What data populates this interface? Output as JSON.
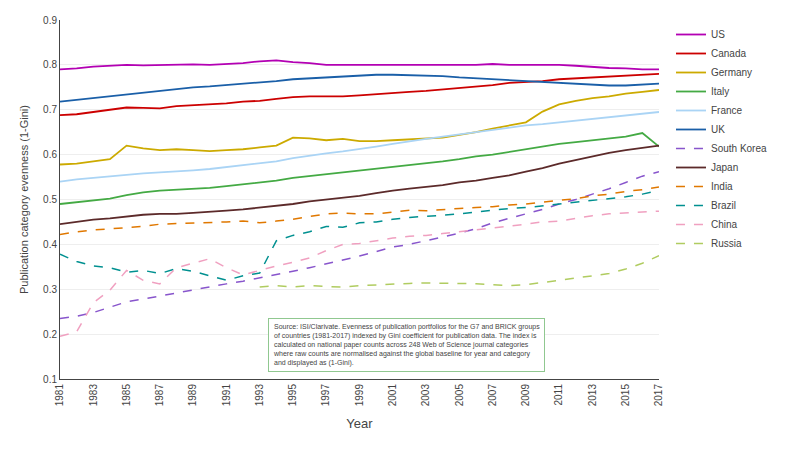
{
  "chart_data": {
    "type": "line",
    "xlabel": "Year",
    "ylabel": "Publication category evenness (1-Gini)",
    "annotation": "Source: ISI/Clarivate. Evenness of publication portfolios for the G7 and BRICK groups\nof countries (1981-2017) indexed by Gini coefficient for publication data. The index is\ncalculated on national paper counts across 248 Web of Science journal categories\nwhere raw counts are normalised against the global baseline for year and category\nand displayed as (1-Gini).",
    "x": [
      1981,
      1982,
      1983,
      1984,
      1985,
      1986,
      1987,
      1988,
      1989,
      1990,
      1991,
      1992,
      1993,
      1994,
      1995,
      1996,
      1997,
      1998,
      1999,
      2000,
      2001,
      2002,
      2003,
      2004,
      2005,
      2006,
      2007,
      2008,
      2009,
      2010,
      2011,
      2012,
      2013,
      2014,
      2015,
      2016,
      2017
    ],
    "xlim": [
      1981,
      2017
    ],
    "xticks": [
      1981,
      1983,
      1985,
      1987,
      1989,
      1991,
      1993,
      1995,
      1997,
      1999,
      2001,
      2003,
      2005,
      2007,
      2009,
      2011,
      2013,
      2015,
      2017
    ],
    "ylim": [
      0.1,
      0.9
    ],
    "yticks": [
      0.1,
      0.2,
      0.3,
      0.4,
      0.5,
      0.6,
      0.7,
      0.8,
      0.9
    ],
    "grid": "y",
    "legend": "right",
    "series": [
      {
        "name": "US",
        "color": "#b300b3",
        "line_style": "solid",
        "values": [
          0.79,
          0.792,
          0.796,
          0.798,
          0.8,
          0.799,
          0.8,
          0.8,
          0.801,
          0.8,
          0.802,
          0.804,
          0.808,
          0.81,
          0.806,
          0.804,
          0.8,
          0.8,
          0.8,
          0.8,
          0.8,
          0.8,
          0.8,
          0.8,
          0.801,
          0.8,
          0.802,
          0.8,
          0.8,
          0.8,
          0.8,
          0.798,
          0.795,
          0.793,
          0.792,
          0.79,
          0.79
        ]
      },
      {
        "name": "Canada",
        "color": "#cc0000",
        "line_style": "solid",
        "values": [
          0.688,
          0.69,
          0.695,
          0.7,
          0.705,
          0.704,
          0.703,
          0.708,
          0.71,
          0.712,
          0.714,
          0.718,
          0.72,
          0.724,
          0.728,
          0.73,
          0.73,
          0.73,
          0.732,
          0.735,
          0.738,
          0.74,
          0.742,
          0.745,
          0.748,
          0.752,
          0.755,
          0.76,
          0.762,
          0.764,
          0.768,
          0.77,
          0.772,
          0.774,
          0.776,
          0.778,
          0.78
        ]
      },
      {
        "name": "Germany",
        "color": "#ccaa00",
        "line_style": "solid",
        "values": [
          0.578,
          0.58,
          0.585,
          0.59,
          0.62,
          0.614,
          0.61,
          0.612,
          0.61,
          0.608,
          0.61,
          0.612,
          0.616,
          0.62,
          0.638,
          0.636,
          0.632,
          0.635,
          0.63,
          0.63,
          0.632,
          0.634,
          0.636,
          0.638,
          0.644,
          0.65,
          0.658,
          0.665,
          0.672,
          0.696,
          0.712,
          0.72,
          0.726,
          0.73,
          0.736,
          0.74,
          0.744
        ]
      },
      {
        "name": "Italy",
        "color": "#44aa44",
        "line_style": "solid",
        "values": [
          0.49,
          0.494,
          0.498,
          0.502,
          0.51,
          0.516,
          0.52,
          0.522,
          0.524,
          0.526,
          0.53,
          0.534,
          0.538,
          0.542,
          0.548,
          0.552,
          0.556,
          0.56,
          0.565,
          0.568,
          0.572,
          0.576,
          0.58,
          0.585,
          0.59,
          0.596,
          0.6,
          0.606,
          0.612,
          0.618,
          0.624,
          0.628,
          0.632,
          0.636,
          0.64,
          0.648,
          0.618
        ]
      },
      {
        "name": "France",
        "color": "#aad4f5",
        "line_style": "solid",
        "values": [
          0.54,
          0.545,
          0.548,
          0.552,
          0.555,
          0.558,
          0.56,
          0.562,
          0.565,
          0.568,
          0.572,
          0.576,
          0.58,
          0.585,
          0.592,
          0.598,
          0.603,
          0.607,
          0.612,
          0.618,
          0.624,
          0.63,
          0.635,
          0.64,
          0.645,
          0.65,
          0.655,
          0.66,
          0.665,
          0.668,
          0.672,
          0.676,
          0.68,
          0.684,
          0.688,
          0.692,
          0.695
        ]
      },
      {
        "name": "UK",
        "color": "#1a5fa8",
        "line_style": "solid",
        "values": [
          0.718,
          0.722,
          0.726,
          0.73,
          0.734,
          0.738,
          0.742,
          0.746,
          0.75,
          0.752,
          0.755,
          0.758,
          0.76,
          0.764,
          0.768,
          0.77,
          0.772,
          0.774,
          0.776,
          0.778,
          0.778,
          0.777,
          0.776,
          0.775,
          0.772,
          0.77,
          0.768,
          0.766,
          0.764,
          0.762,
          0.76,
          0.758,
          0.756,
          0.754,
          0.754,
          0.756,
          0.758
        ]
      },
      {
        "name": "South Korea",
        "color": "#8855cc",
        "line_style": "dashed",
        "values": [
          0.235,
          0.24,
          0.248,
          0.26,
          0.272,
          0.278,
          0.285,
          0.292,
          0.298,
          0.305,
          0.312,
          0.318,
          0.325,
          0.332,
          0.34,
          0.348,
          0.356,
          0.365,
          0.374,
          0.384,
          0.394,
          0.4,
          0.408,
          0.416,
          0.425,
          0.435,
          0.448,
          0.458,
          0.468,
          0.478,
          0.49,
          0.5,
          0.512,
          0.524,
          0.538,
          0.552,
          0.562
        ]
      },
      {
        "name": "Japan",
        "color": "#5c2a2a",
        "line_style": "solid",
        "values": [
          0.445,
          0.45,
          0.455,
          0.458,
          0.462,
          0.466,
          0.468,
          0.468,
          0.47,
          0.472,
          0.475,
          0.478,
          0.482,
          0.486,
          0.49,
          0.496,
          0.5,
          0.504,
          0.508,
          0.514,
          0.52,
          0.524,
          0.528,
          0.532,
          0.538,
          0.542,
          0.548,
          0.554,
          0.562,
          0.57,
          0.58,
          0.588,
          0.596,
          0.604,
          0.61,
          0.615,
          0.62
        ]
      },
      {
        "name": "India",
        "color": "#e07800",
        "line_style": "dashed",
        "values": [
          0.422,
          0.428,
          0.432,
          0.435,
          0.438,
          0.44,
          0.445,
          0.446,
          0.448,
          0.448,
          0.45,
          0.452,
          0.448,
          0.452,
          0.456,
          0.462,
          0.468,
          0.47,
          0.468,
          0.468,
          0.472,
          0.476,
          0.475,
          0.478,
          0.48,
          0.482,
          0.484,
          0.488,
          0.49,
          0.494,
          0.498,
          0.502,
          0.508,
          0.512,
          0.518,
          0.522,
          0.528
        ]
      },
      {
        "name": "Brazil",
        "color": "#009090",
        "line_style": "dashed",
        "values": [
          0.378,
          0.362,
          0.352,
          0.348,
          0.338,
          0.342,
          0.335,
          0.346,
          0.34,
          0.33,
          0.32,
          0.33,
          0.336,
          0.408,
          0.42,
          0.428,
          0.44,
          0.438,
          0.448,
          0.45,
          0.456,
          0.46,
          0.462,
          0.465,
          0.468,
          0.472,
          0.475,
          0.48,
          0.482,
          0.486,
          0.49,
          0.495,
          0.498,
          0.502,
          0.506,
          0.512,
          0.52
        ]
      },
      {
        "name": "China",
        "color": "#f0a0c0",
        "line_style": "dashed",
        "values": [
          0.195,
          0.205,
          0.27,
          0.298,
          0.342,
          0.32,
          0.312,
          0.348,
          0.358,
          0.368,
          0.348,
          0.332,
          0.342,
          0.352,
          0.36,
          0.37,
          0.386,
          0.4,
          0.402,
          0.408,
          0.414,
          0.418,
          0.42,
          0.424,
          0.428,
          0.432,
          0.436,
          0.44,
          0.445,
          0.45,
          0.452,
          0.458,
          0.464,
          0.468,
          0.47,
          0.472,
          0.474
        ]
      },
      {
        "name": "Russia",
        "color": "#b0cc60",
        "line_style": "dashed",
        "values": [
          null,
          null,
          null,
          null,
          null,
          null,
          null,
          null,
          null,
          null,
          null,
          null,
          0.305,
          0.308,
          0.305,
          0.308,
          0.306,
          0.305,
          0.308,
          0.31,
          0.312,
          0.313,
          0.314,
          0.314,
          0.313,
          0.312,
          0.31,
          0.308,
          0.31,
          0.315,
          0.32,
          0.325,
          0.33,
          0.335,
          0.345,
          0.358,
          0.375
        ]
      }
    ]
  }
}
